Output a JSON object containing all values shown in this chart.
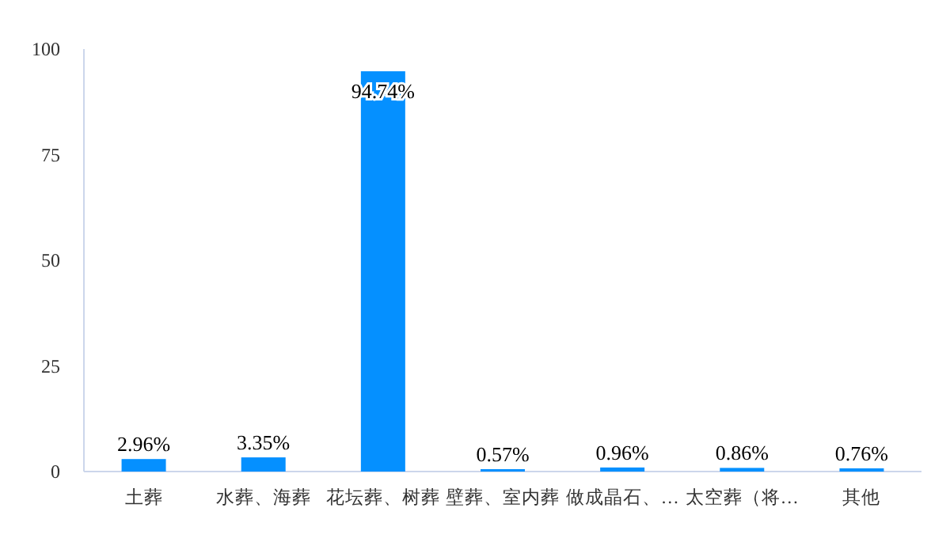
{
  "chart_data": {
    "type": "bar",
    "categories": [
      "土葬",
      "水葬、海葬",
      "花坛葬、树葬",
      "壁葬、室内葬",
      "做成晶石、…",
      "太空葬（将…",
      "其他"
    ],
    "values": [
      2.96,
      3.35,
      94.74,
      0.57,
      0.96,
      0.86,
      0.76
    ],
    "value_labels": [
      "2.96%",
      "3.35%",
      "94.74%",
      "0.57%",
      "0.96%",
      "0.86%",
      "0.76%"
    ],
    "color": "#0590ff",
    "ylim": [
      0,
      100
    ],
    "yticks": [
      0,
      25,
      50,
      75,
      100
    ],
    "grid": false
  }
}
